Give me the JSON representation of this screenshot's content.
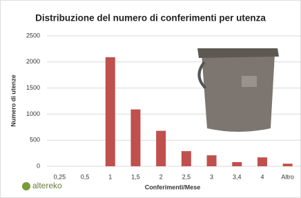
{
  "chart_data": {
    "type": "bar",
    "title": "Distribuzione del numero di conferimenti per utenza",
    "x_label": "Conferimenti/Mese",
    "y_label": "Numero di utenze",
    "categories": [
      "0,25",
      "0,5",
      "1",
      "1,5",
      "2",
      "2,5",
      "3",
      "3,4",
      "4",
      "Altro"
    ],
    "values": [
      0,
      0,
      2090,
      1090,
      680,
      290,
      210,
      80,
      170,
      50
    ],
    "color": "#c0504d",
    "ylim": [
      0,
      2500
    ],
    "yticks": [
      0,
      500,
      1000,
      1500,
      2000,
      2500
    ],
    "grid": true,
    "logo": "altereko"
  }
}
